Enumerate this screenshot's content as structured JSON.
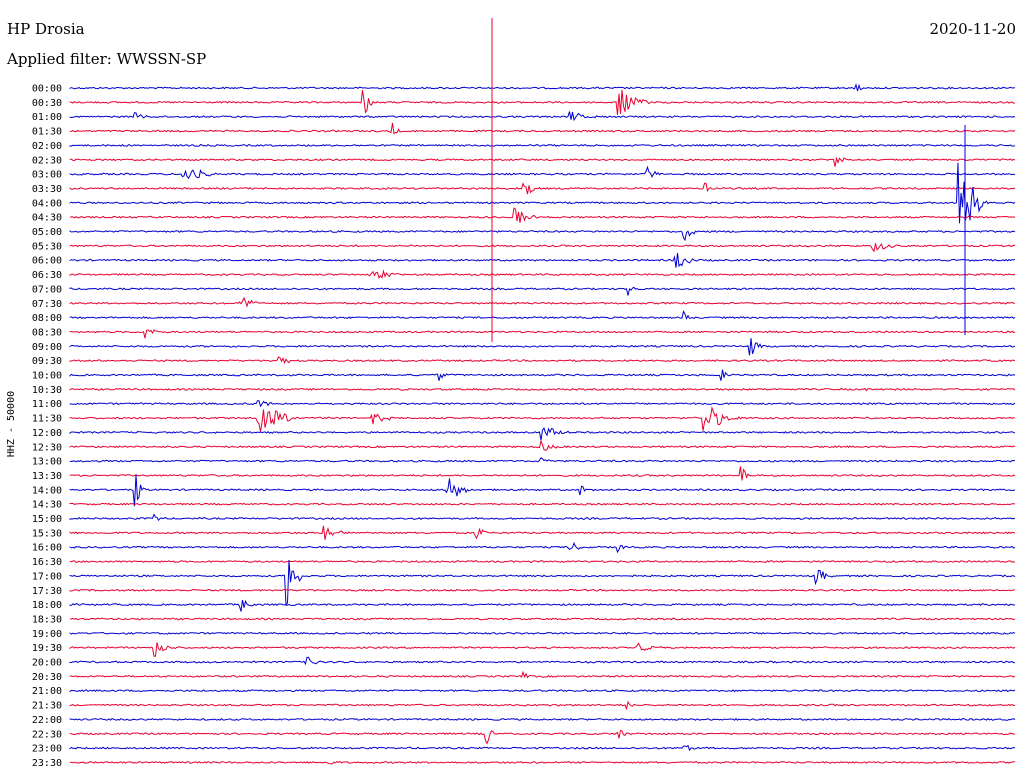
{
  "header": {
    "station": "HP Drosia",
    "filter_label": "Applied filter: WWSSN-SP",
    "date": "2020-11-20"
  },
  "chart_data": {
    "type": "line",
    "ylabel": "HHZ - 50000",
    "times": [
      "00:00",
      "00:30",
      "01:00",
      "01:30",
      "02:00",
      "02:30",
      "03:00",
      "03:30",
      "04:00",
      "04:30",
      "05:00",
      "05:30",
      "06:00",
      "06:30",
      "07:00",
      "07:30",
      "08:00",
      "08:30",
      "09:00",
      "09:30",
      "10:00",
      "10:30",
      "11:00",
      "11:30",
      "12:00",
      "12:30",
      "13:00",
      "13:30",
      "14:00",
      "14:30",
      "15:00",
      "15:30",
      "16:00",
      "16:30",
      "17:00",
      "17:30",
      "18:00",
      "18:30",
      "19:00",
      "19:30",
      "20:00",
      "20:30",
      "21:00",
      "21:30",
      "22:00",
      "22:30",
      "23:00",
      "23:30"
    ],
    "colors": {
      "even": "#0000d0",
      "odd": "#e8002f"
    },
    "grid": false,
    "events": [
      {
        "row": 0,
        "x": 0.83,
        "amp": 8,
        "w": 12
      },
      {
        "row": 1,
        "x": 0.31,
        "amp": 18,
        "w": 14
      },
      {
        "row": 1,
        "x": 0.58,
        "amp": 16,
        "w": 40
      },
      {
        "row": 2,
        "x": 0.53,
        "amp": 6,
        "w": 30
      },
      {
        "row": 2,
        "x": 0.07,
        "amp": 5,
        "w": 20
      },
      {
        "row": 3,
        "x": 0.34,
        "amp": 12,
        "w": 10
      },
      {
        "row": 5,
        "x": 0.81,
        "amp": 8,
        "w": 16
      },
      {
        "row": 6,
        "x": 0.12,
        "amp": 10,
        "w": 40
      },
      {
        "row": 6,
        "x": 0.61,
        "amp": 7,
        "w": 20
      },
      {
        "row": 7,
        "x": 0.48,
        "amp": 14,
        "w": 16
      },
      {
        "row": 7,
        "x": 0.67,
        "amp": 12,
        "w": 12
      },
      {
        "row": 8,
        "x": 0.94,
        "amp": 60,
        "w": 30
      },
      {
        "row": 9,
        "x": 0.47,
        "amp": 10,
        "w": 30
      },
      {
        "row": 10,
        "x": 0.65,
        "amp": 12,
        "w": 14
      },
      {
        "row": 11,
        "x": 0.85,
        "amp": 8,
        "w": 30
      },
      {
        "row": 12,
        "x": 0.64,
        "amp": 12,
        "w": 24
      },
      {
        "row": 13,
        "x": 0.32,
        "amp": 6,
        "w": 40
      },
      {
        "row": 14,
        "x": 0.59,
        "amp": 7,
        "w": 14
      },
      {
        "row": 15,
        "x": 0.18,
        "amp": 7,
        "w": 30
      },
      {
        "row": 16,
        "x": 0.65,
        "amp": 8,
        "w": 10
      },
      {
        "row": 17,
        "x": 0.08,
        "amp": 9,
        "w": 16
      },
      {
        "row": 18,
        "x": 0.72,
        "amp": 10,
        "w": 14
      },
      {
        "row": 19,
        "x": 0.22,
        "amp": 7,
        "w": 20
      },
      {
        "row": 20,
        "x": 0.39,
        "amp": 7,
        "w": 10
      },
      {
        "row": 20,
        "x": 0.69,
        "amp": 8,
        "w": 10
      },
      {
        "row": 21,
        "x": 0.84,
        "amp": 6,
        "w": 10
      },
      {
        "row": 22,
        "x": 0.2,
        "amp": 6,
        "w": 20
      },
      {
        "row": 23,
        "x": 0.2,
        "amp": 18,
        "w": 50
      },
      {
        "row": 23,
        "x": 0.67,
        "amp": 18,
        "w": 40
      },
      {
        "row": 23,
        "x": 0.32,
        "amp": 6,
        "w": 30
      },
      {
        "row": 24,
        "x": 0.5,
        "amp": 10,
        "w": 30
      },
      {
        "row": 25,
        "x": 0.5,
        "amp": 6,
        "w": 20
      },
      {
        "row": 26,
        "x": 0.5,
        "amp": 5,
        "w": 10
      },
      {
        "row": 27,
        "x": 0.71,
        "amp": 10,
        "w": 10
      },
      {
        "row": 28,
        "x": 0.07,
        "amp": 18,
        "w": 10
      },
      {
        "row": 28,
        "x": 0.4,
        "amp": 15,
        "w": 30
      },
      {
        "row": 28,
        "x": 0.54,
        "amp": 6,
        "w": 20
      },
      {
        "row": 30,
        "x": 0.09,
        "amp": 5,
        "w": 10
      },
      {
        "row": 31,
        "x": 0.27,
        "amp": 8,
        "w": 30
      },
      {
        "row": 31,
        "x": 0.43,
        "amp": 7,
        "w": 20
      },
      {
        "row": 32,
        "x": 0.53,
        "amp": 6,
        "w": 20
      },
      {
        "row": 32,
        "x": 0.58,
        "amp": 6,
        "w": 10
      },
      {
        "row": 34,
        "x": 0.23,
        "amp": 30,
        "w": 20
      },
      {
        "row": 34,
        "x": 0.79,
        "amp": 8,
        "w": 20
      },
      {
        "row": 36,
        "x": 0.18,
        "amp": 8,
        "w": 20
      },
      {
        "row": 39,
        "x": 0.09,
        "amp": 10,
        "w": 24
      },
      {
        "row": 39,
        "x": 0.6,
        "amp": 5,
        "w": 40
      },
      {
        "row": 40,
        "x": 0.25,
        "amp": 6,
        "w": 20
      },
      {
        "row": 41,
        "x": 0.48,
        "amp": 5,
        "w": 10
      },
      {
        "row": 43,
        "x": 0.59,
        "amp": 4,
        "w": 20
      },
      {
        "row": 45,
        "x": 0.44,
        "amp": 14,
        "w": 16
      },
      {
        "row": 45,
        "x": 0.58,
        "amp": 10,
        "w": 10
      },
      {
        "row": 46,
        "x": 0.65,
        "amp": 7,
        "w": 12
      },
      {
        "row": 47,
        "x": 0.27,
        "amp": 4,
        "w": 20
      }
    ]
  }
}
